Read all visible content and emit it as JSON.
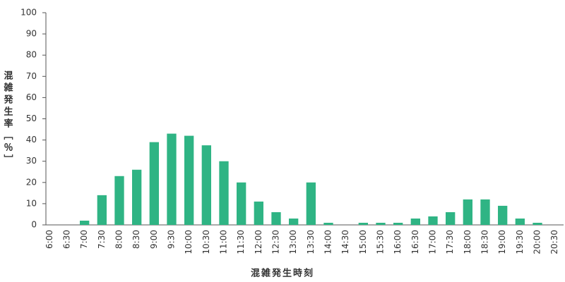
{
  "chart_data": {
    "type": "bar",
    "x_label": "混雑発生時刻",
    "y_label": "混雑発生率［％］",
    "categories": [
      "6:00",
      "6:30",
      "7:00",
      "7:30",
      "8:00",
      "8:30",
      "9:00",
      "9:30",
      "10:00",
      "10:30",
      "11:00",
      "11:30",
      "12:00",
      "12:30",
      "13:00",
      "13:30",
      "14:00",
      "14:30",
      "15:00",
      "15:30",
      "16:00",
      "16:30",
      "17:00",
      "17:30",
      "18:00",
      "18:30",
      "19:00",
      "19:30",
      "20:00",
      "20:30"
    ],
    "values": [
      0,
      0,
      2,
      14,
      23,
      26,
      39,
      43,
      42,
      37.5,
      30,
      20,
      11,
      6,
      3,
      20,
      1,
      0,
      1,
      1,
      1,
      3,
      4,
      6,
      12,
      12,
      9,
      3,
      1,
      0
    ],
    "color": "#2fb484",
    "ylim": [
      0,
      100
    ],
    "yticks": [
      0,
      10,
      20,
      30,
      40,
      50,
      60,
      70,
      80,
      90,
      100
    ],
    "grid": false
  }
}
